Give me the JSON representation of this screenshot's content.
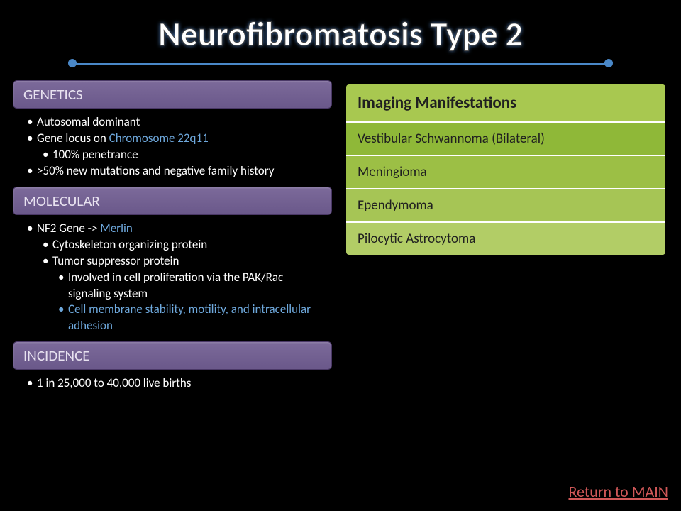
{
  "title": "Neurofibromatosis Type 2",
  "divider_color": "#4a88c8",
  "highlight_color": "#6ea8dc",
  "sections": {
    "genetics": {
      "label": "GENETICS",
      "items": {
        "ad": "Autosomal dominant",
        "locus_pre": "Gene locus on ",
        "locus_hl": "Chromosome 22q11",
        "penetrance": "100% penetrance",
        "mutations": ">50% new mutations and negative family history"
      }
    },
    "molecular": {
      "label": "MOLECULAR",
      "items": {
        "gene_pre": "NF2 Gene -> ",
        "gene_hl": "Merlin",
        "cyto": "Cytoskeleton organizing protein",
        "tumor": "Tumor suppressor protein",
        "pak": "Involved in cell proliferation via the PAK/Rac signaling system",
        "membrane": "Cell membrane stability, motility, and intracellular adhesion"
      }
    },
    "incidence": {
      "label": "INCIDENCE",
      "items": {
        "rate": "1 in 25,000 to 40,000 live births"
      }
    }
  },
  "imaging": {
    "header": "Imaging Manifestations",
    "rows": [
      "Vestibular Schwannoma (Bilateral)",
      "Meningioma",
      "Ependymoma",
      "Pilocytic Astrocytoma"
    ],
    "header_bg": "#a8c850",
    "row_bgs": [
      "#8fb838",
      "#9cbf45",
      "#a6c555",
      "#b2cd66"
    ]
  },
  "return_link": "Return to MAIN",
  "section_header_bg": "#6a588a"
}
